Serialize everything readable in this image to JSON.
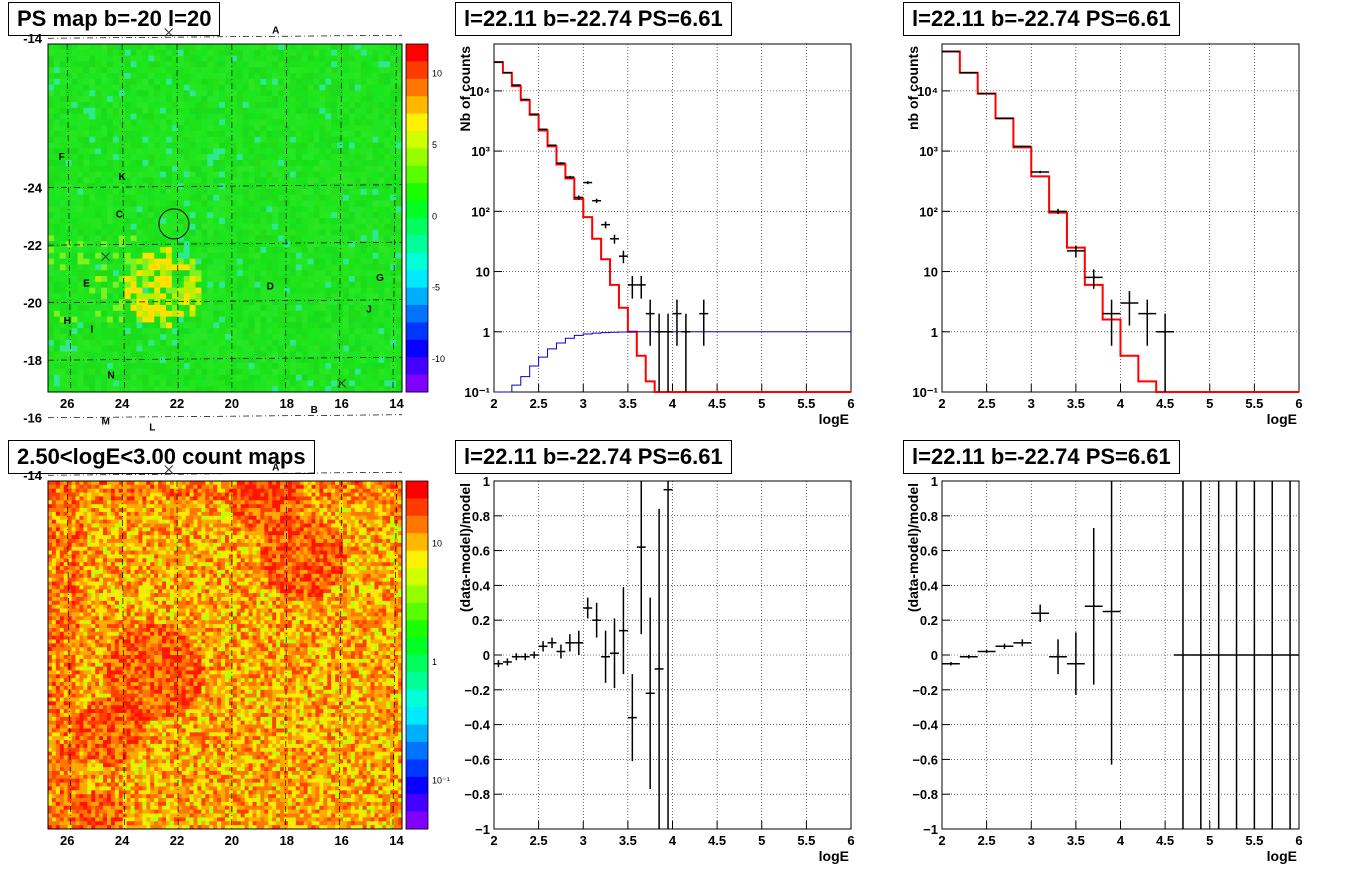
{
  "titles": {
    "map1": "PS map b=-20 l=20",
    "map2": "2.50<logE<3.00 count maps",
    "p1": "l=22.11 b=-22.74 PS=6.61",
    "p2": "l=22.11 b=-22.74 PS=6.61",
    "p3": "l=22.11 b=-22.74 PS=6.61",
    "p4": "l=22.11 b=-22.74 PS=6.61"
  },
  "maps": {
    "x_ticks": [
      "26",
      "24",
      "22",
      "20",
      "18",
      "16",
      "14"
    ],
    "y_ticks": [
      "-14",
      "-16",
      "-18",
      "-20",
      "-22",
      "-24"
    ],
    "source_labels": [
      {
        "t": "A",
        "l": 18.4,
        "b": -14.3
      },
      {
        "t": "B",
        "l": 17.0,
        "b": -16.3
      },
      {
        "t": "C",
        "l": 24.1,
        "b": -23.1
      },
      {
        "t": "D",
        "l": 18.6,
        "b": -20.6
      },
      {
        "t": "E",
        "l": 25.3,
        "b": -20.7
      },
      {
        "t": "F",
        "l": 26.2,
        "b": -25.1
      },
      {
        "t": "G",
        "l": 14.6,
        "b": -20.9
      },
      {
        "t": "H",
        "l": 26.0,
        "b": -19.4
      },
      {
        "t": "I",
        "l": 25.1,
        "b": -19.1
      },
      {
        "t": "J",
        "l": 15.0,
        "b": -19.8
      },
      {
        "t": "K",
        "l": 24.0,
        "b": -24.4
      },
      {
        "t": "L",
        "l": 22.9,
        "b": -15.7
      },
      {
        "t": "M",
        "l": 24.6,
        "b": -15.9
      },
      {
        "t": "N",
        "l": 24.4,
        "b": -17.5
      }
    ],
    "crosses": [
      {
        "l": 22.3,
        "b": -14.2
      },
      {
        "l": 16.0,
        "b": -17.2
      },
      {
        "l": 24.6,
        "b": -21.6
      }
    ],
    "circle": {
      "l": 22.11,
      "b": -22.74
    },
    "colorbar1_ticks": [
      "10",
      "5",
      "0",
      "-5",
      "-10"
    ],
    "colorbar2_ticks": [
      "10",
      "1",
      "10⁻¹"
    ]
  },
  "chart_data": [
    {
      "type": "line",
      "title": "l=22.11 b=-22.74 PS=6.61",
      "xlabel": "logE",
      "ylabel": "Nb of counts",
      "xlim": [
        2,
        6
      ],
      "ylim": [
        0.1,
        60000
      ],
      "yscale": "log",
      "grid": true,
      "x_ticks": [
        "2",
        "2.5",
        "3",
        "3.5",
        "4",
        "4.5",
        "5",
        "5.5",
        "6"
      ],
      "y_ticks": [
        "10⁻¹",
        "1",
        "10",
        "10²",
        "10³",
        "10⁴"
      ],
      "series": [
        {
          "color": "#ff0000",
          "edges": [
            2.0,
            2.1,
            2.2,
            2.3,
            2.4,
            2.5,
            2.6,
            2.7,
            2.8,
            2.9,
            3.0,
            3.1,
            3.2,
            3.3,
            3.4,
            3.5,
            3.6,
            3.7,
            3.8,
            3.9,
            4.0,
            4.1,
            6.0
          ],
          "values": [
            30000,
            20000,
            12000,
            7000,
            4000,
            2200,
            1200,
            600,
            350,
            160,
            80,
            35,
            16,
            6,
            2.5,
            1,
            0.4,
            0.15,
            0.1,
            0.1,
            0.1,
            0.1
          ]
        },
        {
          "color": "#0000cc",
          "edges": [
            2.0,
            2.1,
            2.2,
            2.3,
            2.4,
            2.5,
            2.6,
            2.7,
            2.8,
            2.9,
            3.0,
            3.1,
            3.2,
            3.3,
            3.4,
            3.5,
            3.6,
            3.7,
            3.8,
            3.9,
            4.0,
            6.0
          ],
          "values": [
            0.1,
            0.1,
            0.13,
            0.18,
            0.27,
            0.38,
            0.52,
            0.65,
            0.78,
            0.87,
            0.92,
            0.95,
            0.97,
            0.98,
            0.99,
            1,
            1,
            1,
            1,
            1,
            1
          ]
        }
      ],
      "points": [
        {
          "x": 2.05,
          "y": 30000
        },
        {
          "x": 2.15,
          "y": 20000
        },
        {
          "x": 2.25,
          "y": 12500
        },
        {
          "x": 2.35,
          "y": 7200
        },
        {
          "x": 2.45,
          "y": 4100
        },
        {
          "x": 2.55,
          "y": 2300
        },
        {
          "x": 2.65,
          "y": 1250
        },
        {
          "x": 2.75,
          "y": 630
        },
        {
          "x": 2.85,
          "y": 370
        },
        {
          "x": 2.95,
          "y": 170
        },
        {
          "x": 3.05,
          "y": 300
        },
        {
          "x": 3.15,
          "y": 150
        },
        {
          "x": 3.25,
          "y": 60
        },
        {
          "x": 3.35,
          "y": 35
        },
        {
          "x": 3.45,
          "y": 18
        },
        {
          "x": 3.55,
          "y": 6
        },
        {
          "x": 3.65,
          "y": 6
        },
        {
          "x": 3.75,
          "y": 2
        },
        {
          "x": 3.85,
          "y": 1
        },
        {
          "x": 3.95,
          "y": 1
        },
        {
          "x": 4.05,
          "y": 2
        },
        {
          "x": 4.15,
          "y": 1
        },
        {
          "x": 4.35,
          "y": 2
        }
      ]
    },
    {
      "type": "line",
      "title": "l=22.11 b=-22.74 PS=6.61",
      "xlabel": "logE",
      "ylabel": "nb of counts",
      "xlim": [
        2,
        6
      ],
      "ylim": [
        0.1,
        60000
      ],
      "yscale": "log",
      "grid": true,
      "x_ticks": [
        "2",
        "2.5",
        "3",
        "3.5",
        "4",
        "4.5",
        "5",
        "5.5",
        "6"
      ],
      "y_ticks": [
        "10⁻¹",
        "1",
        "10",
        "10²",
        "10³",
        "10⁴"
      ],
      "series": [
        {
          "color": "#ff0000",
          "edges": [
            2.0,
            2.2,
            2.4,
            2.6,
            2.8,
            3.0,
            3.2,
            3.4,
            3.6,
            3.8,
            4.0,
            4.2,
            4.4,
            6.0
          ],
          "values": [
            45000,
            20000,
            9000,
            3500,
            1150,
            380,
            95,
            25,
            6,
            1.6,
            0.4,
            0.15,
            0.1
          ]
        }
      ],
      "points": [
        {
          "x": 2.1,
          "y": 45000
        },
        {
          "x": 2.3,
          "y": 20000
        },
        {
          "x": 2.5,
          "y": 9000
        },
        {
          "x": 2.7,
          "y": 3500
        },
        {
          "x": 2.9,
          "y": 1200
        },
        {
          "x": 3.1,
          "y": 450
        },
        {
          "x": 3.3,
          "y": 100
        },
        {
          "x": 3.5,
          "y": 22
        },
        {
          "x": 3.7,
          "y": 8
        },
        {
          "x": 3.9,
          "y": 2
        },
        {
          "x": 4.1,
          "y": 3
        },
        {
          "x": 4.3,
          "y": 2
        },
        {
          "x": 4.5,
          "y": 1
        }
      ]
    },
    {
      "type": "scatter",
      "title": "l=22.11 b=-22.74 PS=6.61",
      "xlabel": "logE",
      "ylabel": "(data-model)/model",
      "xlim": [
        2,
        6
      ],
      "ylim": [
        -1,
        1
      ],
      "grid": true,
      "x_ticks": [
        "2",
        "2.5",
        "3",
        "3.5",
        "4",
        "4.5",
        "5",
        "5.5",
        "6"
      ],
      "y_ticks": [
        "−1",
        "−0.8",
        "−0.6",
        "−0.4",
        "−0.2",
        "0",
        "0.2",
        "0.4",
        "0.6",
        "0.8",
        "1"
      ],
      "points": [
        {
          "x": 2.05,
          "y": -0.05,
          "e": 0.02
        },
        {
          "x": 2.15,
          "y": -0.04,
          "e": 0.02
        },
        {
          "x": 2.25,
          "y": -0.01,
          "e": 0.02
        },
        {
          "x": 2.35,
          "y": -0.01,
          "e": 0.02
        },
        {
          "x": 2.45,
          "y": 0.0,
          "e": 0.02
        },
        {
          "x": 2.55,
          "y": 0.05,
          "e": 0.03
        },
        {
          "x": 2.65,
          "y": 0.07,
          "e": 0.03
        },
        {
          "x": 2.75,
          "y": 0.02,
          "e": 0.04
        },
        {
          "x": 2.85,
          "y": 0.07,
          "e": 0.05
        },
        {
          "x": 2.95,
          "y": 0.07,
          "e": 0.07
        },
        {
          "x": 3.05,
          "y": 0.27,
          "e": 0.06
        },
        {
          "x": 3.15,
          "y": 0.2,
          "e": 0.1
        },
        {
          "x": 3.25,
          "y": -0.01,
          "e": 0.15
        },
        {
          "x": 3.35,
          "y": 0.01,
          "e": 0.2
        },
        {
          "x": 3.45,
          "y": 0.14,
          "e": 0.25
        },
        {
          "x": 3.55,
          "y": -0.36,
          "e": 0.25
        },
        {
          "x": 3.65,
          "y": 0.62,
          "e": 0.5
        },
        {
          "x": 3.75,
          "y": -0.22,
          "e": 0.55
        },
        {
          "x": 3.85,
          "y": -0.08,
          "e": 0.92
        },
        {
          "x": 3.95,
          "y": 0.95,
          "e": 1.95
        }
      ]
    },
    {
      "type": "scatter",
      "title": "l=22.11 b=-22.74 PS=6.61",
      "xlabel": "logE",
      "ylabel": "(data-model)/model",
      "xlim": [
        2,
        6
      ],
      "ylim": [
        -1,
        1
      ],
      "grid": true,
      "x_ticks": [
        "2",
        "2.5",
        "3",
        "3.5",
        "4",
        "4.5",
        "5",
        "5.5",
        "6"
      ],
      "y_ticks": [
        "−1",
        "−0.8",
        "−0.6",
        "−0.4",
        "−0.2",
        "0",
        "0.2",
        "0.4",
        "0.6",
        "0.8",
        "1"
      ],
      "points": [
        {
          "x": 2.1,
          "y": -0.05,
          "e": 0.01
        },
        {
          "x": 2.3,
          "y": -0.01,
          "e": 0.01
        },
        {
          "x": 2.5,
          "y": 0.02,
          "e": 0.01
        },
        {
          "x": 2.7,
          "y": 0.05,
          "e": 0.015
        },
        {
          "x": 2.9,
          "y": 0.07,
          "e": 0.02
        },
        {
          "x": 3.1,
          "y": 0.24,
          "e": 0.05
        },
        {
          "x": 3.3,
          "y": -0.01,
          "e": 0.1
        },
        {
          "x": 3.5,
          "y": -0.05,
          "e": 0.18
        },
        {
          "x": 3.7,
          "y": 0.28,
          "e": 0.45
        },
        {
          "x": 3.9,
          "y": 0.25,
          "e": 0.88
        },
        {
          "x": 4.7,
          "y": 0,
          "e": 2
        },
        {
          "x": 4.9,
          "y": 0,
          "e": 2
        },
        {
          "x": 5.1,
          "y": 0,
          "e": 2
        },
        {
          "x": 5.3,
          "y": 0,
          "e": 2
        },
        {
          "x": 5.5,
          "y": 0,
          "e": 2
        },
        {
          "x": 5.7,
          "y": 0,
          "e": 2
        },
        {
          "x": 5.9,
          "y": 0,
          "e": 2
        }
      ]
    }
  ]
}
